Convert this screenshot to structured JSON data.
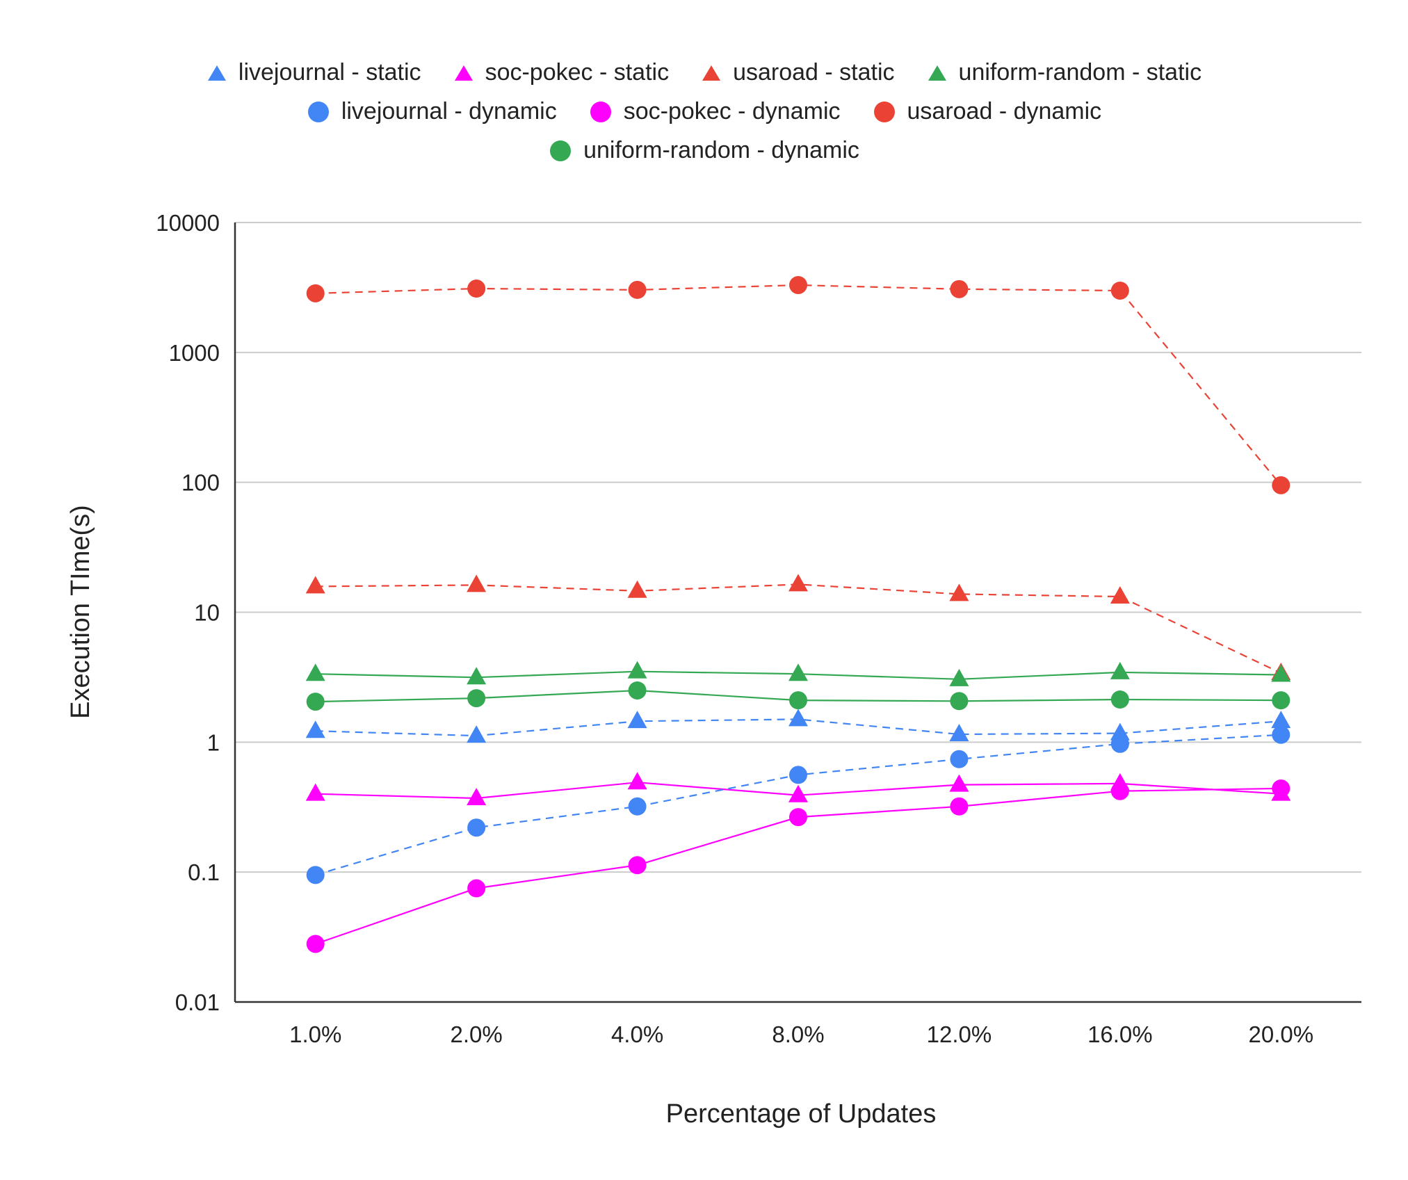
{
  "chart_data": {
    "type": "line",
    "title": "",
    "xlabel": "Percentage of Updates",
    "ylabel": "Execution TIme(s)",
    "yscale": "log",
    "ylim": [
      0.01,
      10000
    ],
    "yticks": [
      {
        "value": 10000,
        "label": "10000"
      },
      {
        "value": 1000,
        "label": "1000"
      },
      {
        "value": 100,
        "label": "100"
      },
      {
        "value": 10,
        "label": "10"
      },
      {
        "value": 1,
        "label": "1"
      },
      {
        "value": 0.1,
        "label": "0.1"
      },
      {
        "value": 0.01,
        "label": "0.01"
      }
    ],
    "categories": [
      "1.0%",
      "2.0%",
      "4.0%",
      "8.0%",
      "12.0%",
      "16.0%",
      "20.0%"
    ],
    "grid": true,
    "legend_position": "top",
    "series": [
      {
        "name": "livejournal - static",
        "color": "#4285F4",
        "marker": "triangle",
        "line": "dashed",
        "values": [
          1.22,
          1.12,
          1.45,
          1.5,
          1.15,
          1.17,
          1.45
        ]
      },
      {
        "name": "soc-pokec - static",
        "color": "#FF00FF",
        "marker": "triangle",
        "line": "solid",
        "values": [
          0.4,
          0.37,
          0.49,
          0.39,
          0.47,
          0.48,
          0.4
        ]
      },
      {
        "name": "usaroad - static",
        "color": "#EA4335",
        "marker": "triangle",
        "line": "dashed",
        "values": [
          15.8,
          16.2,
          14.6,
          16.4,
          13.8,
          13.2,
          3.4
        ]
      },
      {
        "name": "uniform-random - static",
        "color": "#34A853",
        "marker": "triangle",
        "line": "solid",
        "values": [
          3.35,
          3.15,
          3.5,
          3.35,
          3.05,
          3.45,
          3.3
        ]
      },
      {
        "name": "livejournal - dynamic",
        "color": "#4285F4",
        "marker": "circle",
        "line": "dashed",
        "values": [
          0.095,
          0.22,
          0.32,
          0.56,
          0.74,
          0.97,
          1.14
        ]
      },
      {
        "name": "soc-pokec - dynamic",
        "color": "#FF00FF",
        "marker": "circle",
        "line": "solid",
        "values": [
          0.028,
          0.075,
          0.113,
          0.265,
          0.32,
          0.42,
          0.44
        ]
      },
      {
        "name": "usaroad - dynamic",
        "color": "#EA4335",
        "marker": "circle",
        "line": "dashed",
        "values": [
          2850,
          3100,
          3030,
          3300,
          3070,
          2990,
          95
        ]
      },
      {
        "name": "uniform-random - dynamic",
        "color": "#34A853",
        "marker": "circle",
        "line": "solid",
        "values": [
          2.05,
          2.18,
          2.5,
          2.1,
          2.07,
          2.13,
          2.1
        ]
      }
    ]
  }
}
